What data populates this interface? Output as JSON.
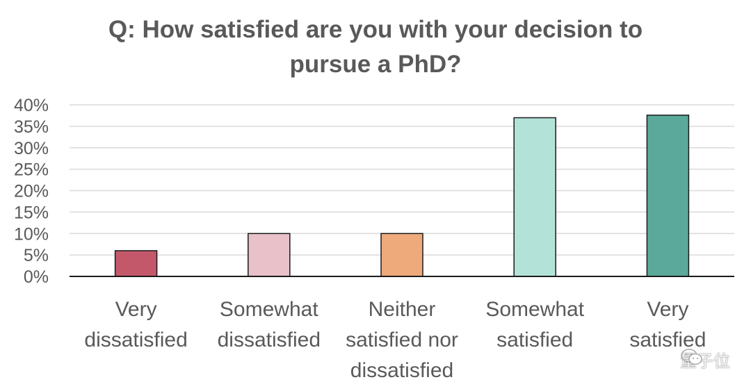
{
  "chart_data": {
    "type": "bar",
    "title_lines": [
      "Q: How satisfied are you with your decision to",
      "pursue a PhD?"
    ],
    "categories": [
      [
        "Very",
        "dissatisfied"
      ],
      [
        "Somewhat",
        "dissatisfied"
      ],
      [
        "Neither",
        "satisfied nor",
        "dissatisfied"
      ],
      [
        "Somewhat",
        "satisfied"
      ],
      [
        "Very",
        "satisfied"
      ]
    ],
    "values": [
      6,
      10,
      10,
      37,
      37.6
    ],
    "colors": [
      "#c4586b",
      "#e8c1c9",
      "#eeaa7b",
      "#b3e3d8",
      "#5ba99a"
    ],
    "yticks": [
      "0%",
      "5%",
      "10%",
      "15%",
      "20%",
      "25%",
      "30%",
      "35%",
      "40%"
    ],
    "ylim": [
      0,
      40
    ],
    "ylabel": "",
    "xlabel": "",
    "grid": true
  },
  "watermark": {
    "text": "量子位",
    "icon": "wechat-icon"
  }
}
